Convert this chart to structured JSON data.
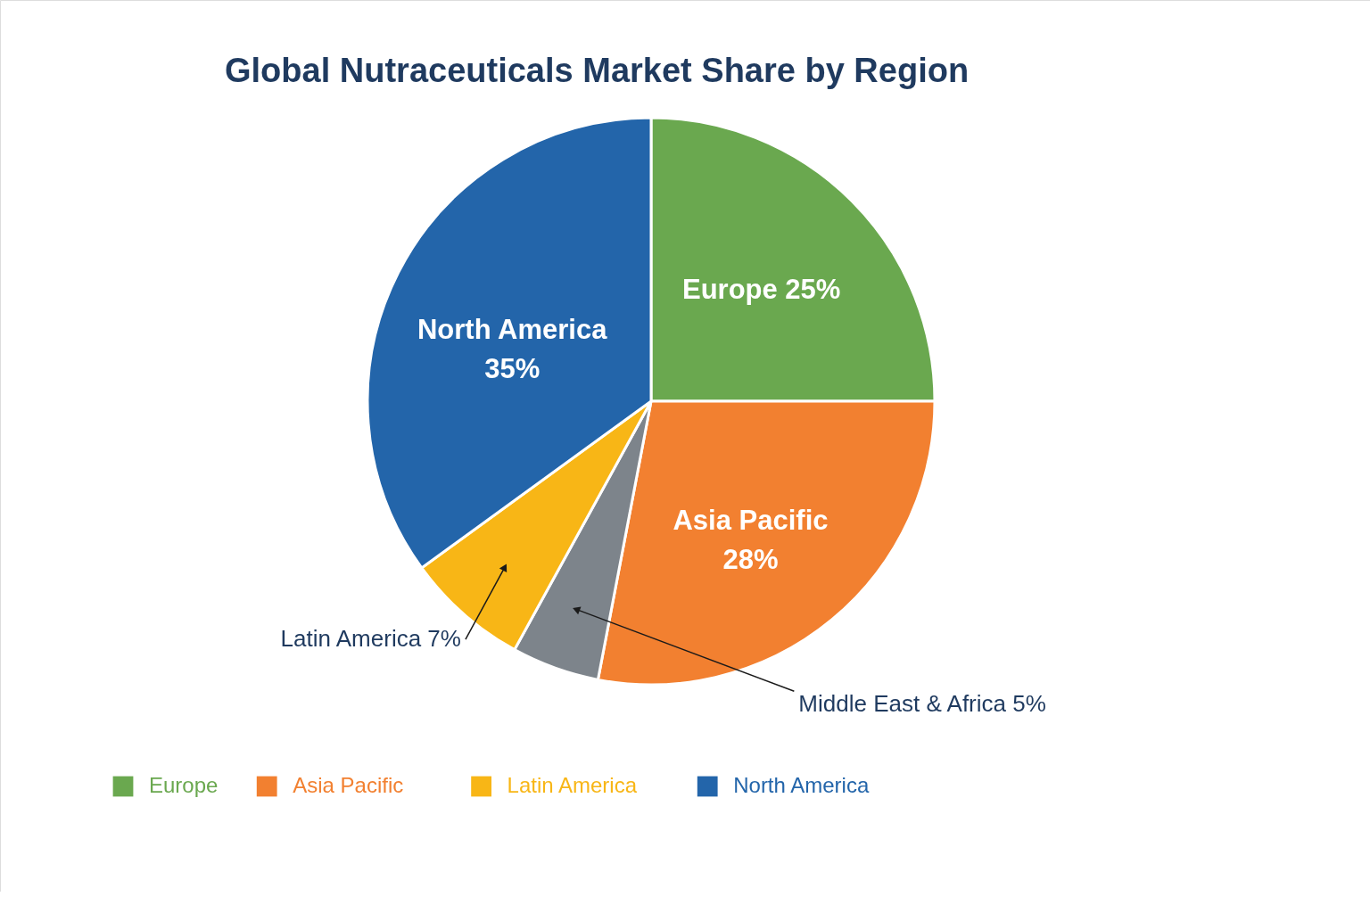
{
  "chart_data": {
    "type": "pie",
    "title": "Global Nutraceuticals Market Share by Region",
    "categories": [
      "Europe",
      "Asia Pacific",
      "Middle East & Africa",
      "Latin America",
      "North America"
    ],
    "values": [
      25,
      28,
      5,
      7,
      35
    ],
    "value_labels": [
      "25%",
      "28%",
      "5%",
      "7%",
      "35%"
    ],
    "colors": [
      "#6aa84f",
      "#f28030",
      "#7d848b",
      "#f8b616",
      "#2365aa"
    ],
    "legend": "bottom"
  }
}
